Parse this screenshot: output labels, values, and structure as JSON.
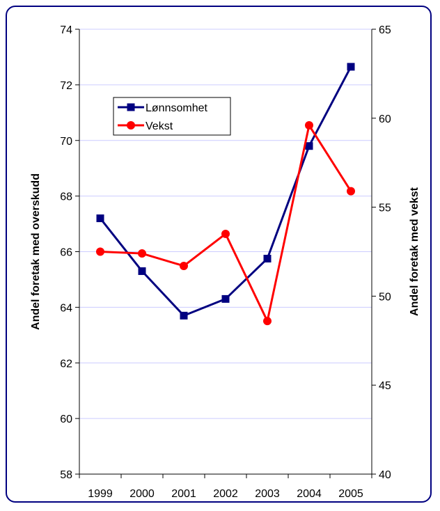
{
  "chart_data": {
    "type": "line",
    "categories": [
      "1999",
      "2000",
      "2001",
      "2002",
      "2003",
      "2004",
      "2005"
    ],
    "y_left": {
      "label": "Andel foretak med overskudd",
      "min": 58,
      "max": 74,
      "step": 2,
      "ticks": [
        "58",
        "60",
        "62",
        "64",
        "66",
        "68",
        "70",
        "72",
        "74"
      ]
    },
    "y_right": {
      "label": "Andel foretak med vekst",
      "min": 40,
      "max": 65,
      "step": 5,
      "ticks": [
        "40",
        "45",
        "50",
        "55",
        "60",
        "65"
      ]
    },
    "series": [
      {
        "name": "Lønnsomhet",
        "axis": "left",
        "color": "#000080",
        "marker": "square",
        "values": [
          67.2,
          65.3,
          63.7,
          64.3,
          65.75,
          69.8,
          72.65
        ]
      },
      {
        "name": "Vekst",
        "axis": "right",
        "color": "#ff0000",
        "marker": "circle",
        "values": [
          52.5,
          52.4,
          51.7,
          53.5,
          48.6,
          59.6,
          55.9
        ]
      }
    ],
    "grid": {
      "horizontal": true,
      "color": "#ccccff"
    },
    "legend_position": "top-left-inside"
  }
}
